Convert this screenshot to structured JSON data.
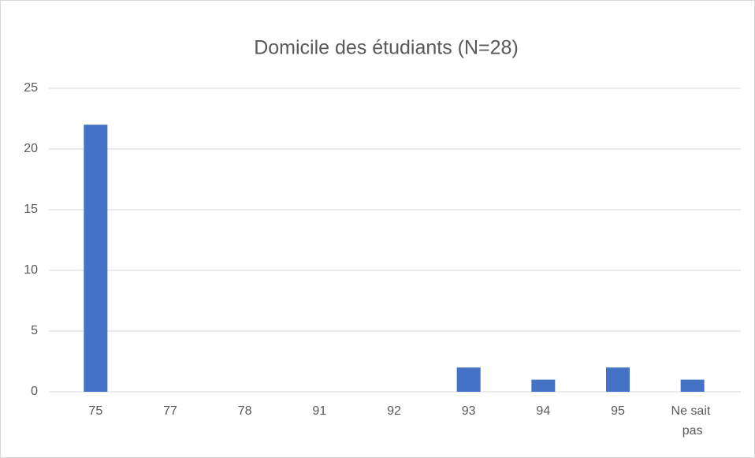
{
  "chart_data": {
    "type": "bar",
    "title": "Domicile des étudiants (N=28)",
    "categories": [
      "75",
      "77",
      "78",
      "91",
      "92",
      "93",
      "94",
      "95",
      "Ne sait pas"
    ],
    "values": [
      22,
      0,
      0,
      0,
      0,
      2,
      1,
      2,
      1
    ],
    "color": "#4472c4",
    "ylim": [
      0,
      25
    ],
    "yticks": [
      0,
      5,
      10,
      15,
      20,
      25
    ],
    "grid": true
  }
}
